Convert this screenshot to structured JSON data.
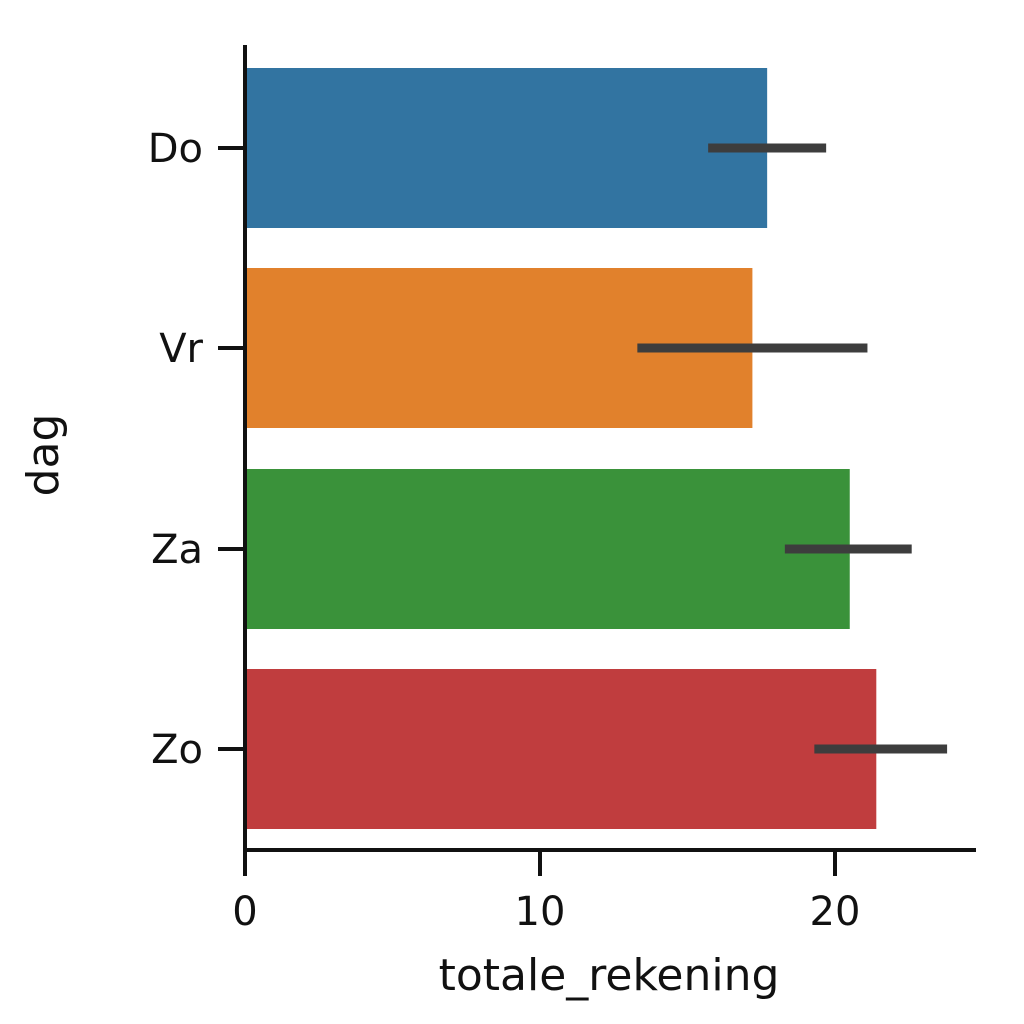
{
  "chart_data": {
    "type": "bar",
    "orientation": "horizontal",
    "title": "",
    "xlabel": "totale_rekening",
    "ylabel": "dag",
    "categories": [
      "Do",
      "Vr",
      "Za",
      "Zo"
    ],
    "values": [
      17.7,
      17.2,
      20.5,
      21.4
    ],
    "error_bars": [
      {
        "low": 15.7,
        "high": 19.7
      },
      {
        "low": 13.3,
        "high": 21.1
      },
      {
        "low": 18.3,
        "high": 22.6
      },
      {
        "low": 19.3,
        "high": 23.8
      }
    ],
    "colors": [
      "#3274a1",
      "#e1812c",
      "#3a923a",
      "#c03d3e"
    ],
    "error_bar_color": "#3d3d3d",
    "xticks": [
      0,
      10,
      20
    ],
    "xlim": [
      0,
      24.7
    ],
    "grid": false,
    "legend": null
  }
}
